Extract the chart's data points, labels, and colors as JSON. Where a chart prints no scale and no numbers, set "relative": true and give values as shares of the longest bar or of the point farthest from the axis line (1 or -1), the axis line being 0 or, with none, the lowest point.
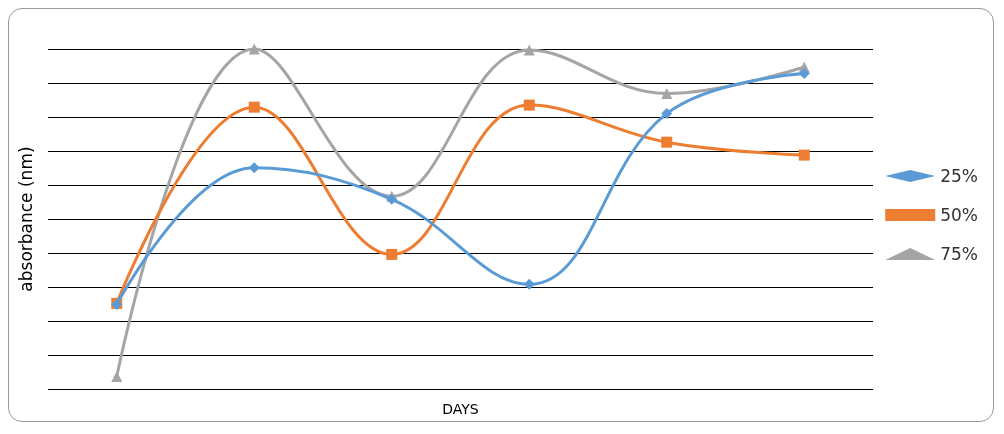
{
  "chart_data": {
    "type": "line",
    "relative": true,
    "xlabel": "DAYS",
    "ylabel": "absorbance (nm)",
    "categories": [
      null,
      null,
      null,
      null,
      null,
      null
    ],
    "grid": "y",
    "legend": "right",
    "series": [
      {
        "name": "25%",
        "color": "#5b9bd5",
        "marker": "diamond",
        "values": [
          0.249,
          0.651,
          0.558,
          0.308,
          0.81,
          0.928
        ]
      },
      {
        "name": "50%",
        "color": "#ed7d31",
        "marker": "square",
        "values": [
          0.252,
          0.829,
          0.396,
          0.835,
          0.726,
          0.688
        ]
      },
      {
        "name": "75%",
        "color": "#a5a5a5",
        "marker": "triangle",
        "values": [
          0.037,
          1,
          0.567,
          0.997,
          0.869,
          0.947
        ]
      }
    ]
  }
}
